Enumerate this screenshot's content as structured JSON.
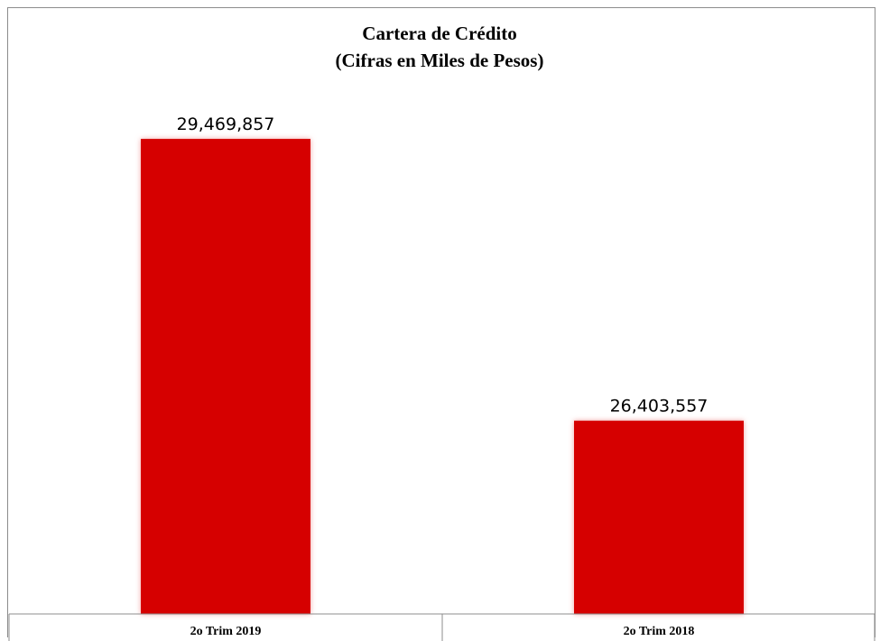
{
  "chart_data": {
    "type": "bar",
    "title": "Cartera de Crédito",
    "subtitle": "(Cifras en Miles de Pesos)",
    "categories": [
      "2o Trim 2019",
      "2o Trim 2018"
    ],
    "values": [
      29469857,
      26403557
    ],
    "data_labels": [
      "29,469,857",
      "26,403,557"
    ],
    "xlabel": "",
    "ylabel": "",
    "ylim": [
      24300000,
      30000000
    ],
    "grid": false,
    "legend": "none",
    "bar_color": "#d60000",
    "bar_glow_color": "#f2a0a0"
  }
}
